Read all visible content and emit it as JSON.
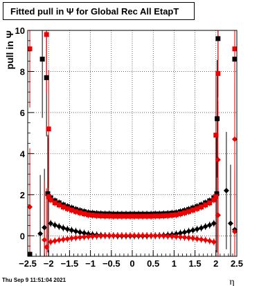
{
  "title": "Fitted pull in  Ψ   for Global Rec All EtapT",
  "footer_timestamp": "Thu Sep  9 11:51:04 2021",
  "chart_data": {
    "type": "scatter",
    "title": "Fitted pull in  Ψ   for Global Rec All EtapT",
    "xlabel": "η",
    "ylabel": "pull in  Ψ",
    "xlim": [
      -2.5,
      2.5
    ],
    "ylim": [
      -1,
      10
    ],
    "xticks": [
      -2.5,
      -2,
      -1.5,
      -1,
      -0.5,
      0,
      0.5,
      1,
      1.5,
      2,
      2.5
    ],
    "xtick_labels": [
      "−2.5",
      "−2",
      "−1.5",
      "−1",
      "−0.5",
      "0",
      "0.5",
      "1",
      "1.5",
      "2",
      "2.5"
    ],
    "yticks": [
      0,
      2,
      4,
      6,
      8,
      10
    ],
    "ytick_labels": [
      "0",
      "2",
      "4",
      "6",
      "8",
      "10"
    ],
    "grid": true,
    "series": [
      {
        "role": "sigma",
        "marker": "square",
        "color": "#000000",
        "points": [
          [
            -2.45,
            -0.9
          ],
          [
            -2.15,
            8.6
          ],
          [
            -2.05,
            7.7
          ],
          [
            -2.02,
            2.05
          ],
          [
            -1.95,
            1.85
          ],
          [
            -1.85,
            1.7
          ],
          [
            -1.75,
            1.6
          ],
          [
            -1.65,
            1.5
          ],
          [
            -1.55,
            1.42
          ],
          [
            -1.45,
            1.35
          ],
          [
            -1.35,
            1.28
          ],
          [
            -1.25,
            1.22
          ],
          [
            -1.15,
            1.17
          ],
          [
            -1.05,
            1.12
          ],
          [
            -0.95,
            1.1
          ],
          [
            -0.85,
            1.08
          ],
          [
            -0.75,
            1.07
          ],
          [
            -0.65,
            1.06
          ],
          [
            -0.55,
            1.06
          ],
          [
            -0.45,
            1.05
          ],
          [
            -0.35,
            1.05
          ],
          [
            -0.25,
            1.05
          ],
          [
            -0.15,
            1.05
          ],
          [
            -0.05,
            1.05
          ],
          [
            0.05,
            1.05
          ],
          [
            0.15,
            1.05
          ],
          [
            0.25,
            1.05
          ],
          [
            0.35,
            1.05
          ],
          [
            0.45,
            1.05
          ],
          [
            0.55,
            1.06
          ],
          [
            0.65,
            1.06
          ],
          [
            0.75,
            1.07
          ],
          [
            0.85,
            1.08
          ],
          [
            0.95,
            1.1
          ],
          [
            1.05,
            1.12
          ],
          [
            1.15,
            1.17
          ],
          [
            1.25,
            1.22
          ],
          [
            1.35,
            1.28
          ],
          [
            1.45,
            1.35
          ],
          [
            1.55,
            1.42
          ],
          [
            1.65,
            1.5
          ],
          [
            1.75,
            1.6
          ],
          [
            1.85,
            1.7
          ],
          [
            1.95,
            1.85
          ],
          [
            2.02,
            2.05
          ],
          [
            2.03,
            5.7
          ],
          [
            2.05,
            9.6
          ],
          [
            2.45,
            8.6
          ]
        ]
      },
      {
        "role": "sigma",
        "marker": "square",
        "color": "#ee0000",
        "points": [
          [
            -2.45,
            9.1
          ],
          [
            -2.05,
            9.8
          ],
          [
            -2.0,
            5.2
          ],
          [
            -2.0,
            1.9
          ],
          [
            -1.95,
            1.75
          ],
          [
            -1.85,
            1.6
          ],
          [
            -1.75,
            1.5
          ],
          [
            -1.65,
            1.4
          ],
          [
            -1.55,
            1.32
          ],
          [
            -1.45,
            1.25
          ],
          [
            -1.35,
            1.18
          ],
          [
            -1.25,
            1.12
          ],
          [
            -1.15,
            1.07
          ],
          [
            -1.05,
            1.02
          ],
          [
            -0.95,
            1.0
          ],
          [
            -0.85,
            0.98
          ],
          [
            -0.75,
            0.97
          ],
          [
            -0.65,
            0.96
          ],
          [
            -0.55,
            0.96
          ],
          [
            -0.45,
            0.95
          ],
          [
            -0.35,
            0.95
          ],
          [
            -0.25,
            0.95
          ],
          [
            -0.15,
            0.95
          ],
          [
            -0.05,
            0.95
          ],
          [
            0.05,
            0.95
          ],
          [
            0.15,
            0.95
          ],
          [
            0.25,
            0.95
          ],
          [
            0.35,
            0.95
          ],
          [
            0.45,
            0.95
          ],
          [
            0.55,
            0.96
          ],
          [
            0.65,
            0.96
          ],
          [
            0.75,
            0.97
          ],
          [
            0.85,
            0.98
          ],
          [
            0.95,
            1.0
          ],
          [
            1.05,
            1.02
          ],
          [
            1.15,
            1.07
          ],
          [
            1.25,
            1.12
          ],
          [
            1.35,
            1.18
          ],
          [
            1.45,
            1.25
          ],
          [
            1.55,
            1.32
          ],
          [
            1.65,
            1.4
          ],
          [
            1.75,
            1.5
          ],
          [
            1.85,
            1.6
          ],
          [
            1.95,
            1.75
          ],
          [
            2.0,
            1.9
          ],
          [
            2.0,
            4.9
          ],
          [
            2.05,
            7.9
          ],
          [
            2.45,
            9.1
          ]
        ]
      },
      {
        "role": "mean",
        "marker": "diamond",
        "color": "#000000",
        "points": [
          [
            -2.2,
            0.1
          ],
          [
            -2.1,
            0.4
          ],
          [
            -1.95,
            0.6
          ],
          [
            -1.85,
            0.52
          ],
          [
            -1.75,
            0.45
          ],
          [
            -1.65,
            0.38
          ],
          [
            -1.55,
            0.32
          ],
          [
            -1.45,
            0.27
          ],
          [
            -1.35,
            0.22
          ],
          [
            -1.25,
            0.17
          ],
          [
            -1.15,
            0.13
          ],
          [
            -1.05,
            0.09
          ],
          [
            -0.95,
            0.06
          ],
          [
            -0.85,
            0.04
          ],
          [
            -0.75,
            0.02
          ],
          [
            -0.65,
            0.01
          ],
          [
            -0.55,
            0.0
          ],
          [
            -0.45,
            0.0
          ],
          [
            -0.35,
            -0.01
          ],
          [
            -0.25,
            -0.01
          ],
          [
            -0.15,
            -0.01
          ],
          [
            -0.05,
            -0.01
          ],
          [
            0.05,
            -0.01
          ],
          [
            0.15,
            -0.01
          ],
          [
            0.25,
            -0.01
          ],
          [
            0.35,
            -0.01
          ],
          [
            0.45,
            0.0
          ],
          [
            0.55,
            0.0
          ],
          [
            0.65,
            0.01
          ],
          [
            0.75,
            0.02
          ],
          [
            0.85,
            0.04
          ],
          [
            0.95,
            0.06
          ],
          [
            1.05,
            0.09
          ],
          [
            1.15,
            0.13
          ],
          [
            1.25,
            0.17
          ],
          [
            1.35,
            0.22
          ],
          [
            1.45,
            0.27
          ],
          [
            1.55,
            0.32
          ],
          [
            1.65,
            0.38
          ],
          [
            1.75,
            0.45
          ],
          [
            1.85,
            0.52
          ],
          [
            1.95,
            0.6
          ],
          [
            2.05,
            1.0
          ],
          [
            2.35,
            0.6
          ],
          [
            2.45,
            0.3
          ],
          [
            2.25,
            2.2
          ]
        ]
      },
      {
        "role": "mean",
        "marker": "diamond",
        "color": "#ee0000",
        "points": [
          [
            -2.45,
            1.4
          ],
          [
            -2.1,
            -0.2
          ],
          [
            -2.05,
            -0.55
          ],
          [
            -1.95,
            -0.3
          ],
          [
            -1.85,
            -0.25
          ],
          [
            -1.75,
            -0.21
          ],
          [
            -1.65,
            -0.18
          ],
          [
            -1.55,
            -0.15
          ],
          [
            -1.45,
            -0.12
          ],
          [
            -1.35,
            -0.1
          ],
          [
            -1.25,
            -0.08
          ],
          [
            -1.15,
            -0.06
          ],
          [
            -1.05,
            -0.04
          ],
          [
            -0.95,
            -0.03
          ],
          [
            -0.85,
            -0.02
          ],
          [
            -0.75,
            -0.01
          ],
          [
            -0.65,
            0.0
          ],
          [
            -0.55,
            0.0
          ],
          [
            -0.45,
            0.0
          ],
          [
            -0.35,
            0.01
          ],
          [
            -0.25,
            0.01
          ],
          [
            -0.15,
            0.01
          ],
          [
            -0.05,
            0.01
          ],
          [
            0.05,
            0.01
          ],
          [
            0.15,
            0.01
          ],
          [
            0.25,
            0.01
          ],
          [
            0.35,
            0.01
          ],
          [
            0.45,
            0.0
          ],
          [
            0.55,
            0.0
          ],
          [
            0.65,
            0.0
          ],
          [
            0.75,
            -0.01
          ],
          [
            0.85,
            -0.02
          ],
          [
            0.95,
            -0.03
          ],
          [
            1.05,
            -0.04
          ],
          [
            1.15,
            -0.06
          ],
          [
            1.25,
            -0.08
          ],
          [
            1.35,
            -0.1
          ],
          [
            1.45,
            -0.12
          ],
          [
            1.55,
            -0.15
          ],
          [
            1.65,
            -0.18
          ],
          [
            1.75,
            -0.21
          ],
          [
            1.85,
            -0.25
          ],
          [
            1.95,
            -0.3
          ],
          [
            2.05,
            3.7
          ],
          [
            2.45,
            4.7
          ],
          [
            2.05,
            1.0
          ],
          [
            2.45,
            0.2
          ]
        ]
      }
    ]
  }
}
